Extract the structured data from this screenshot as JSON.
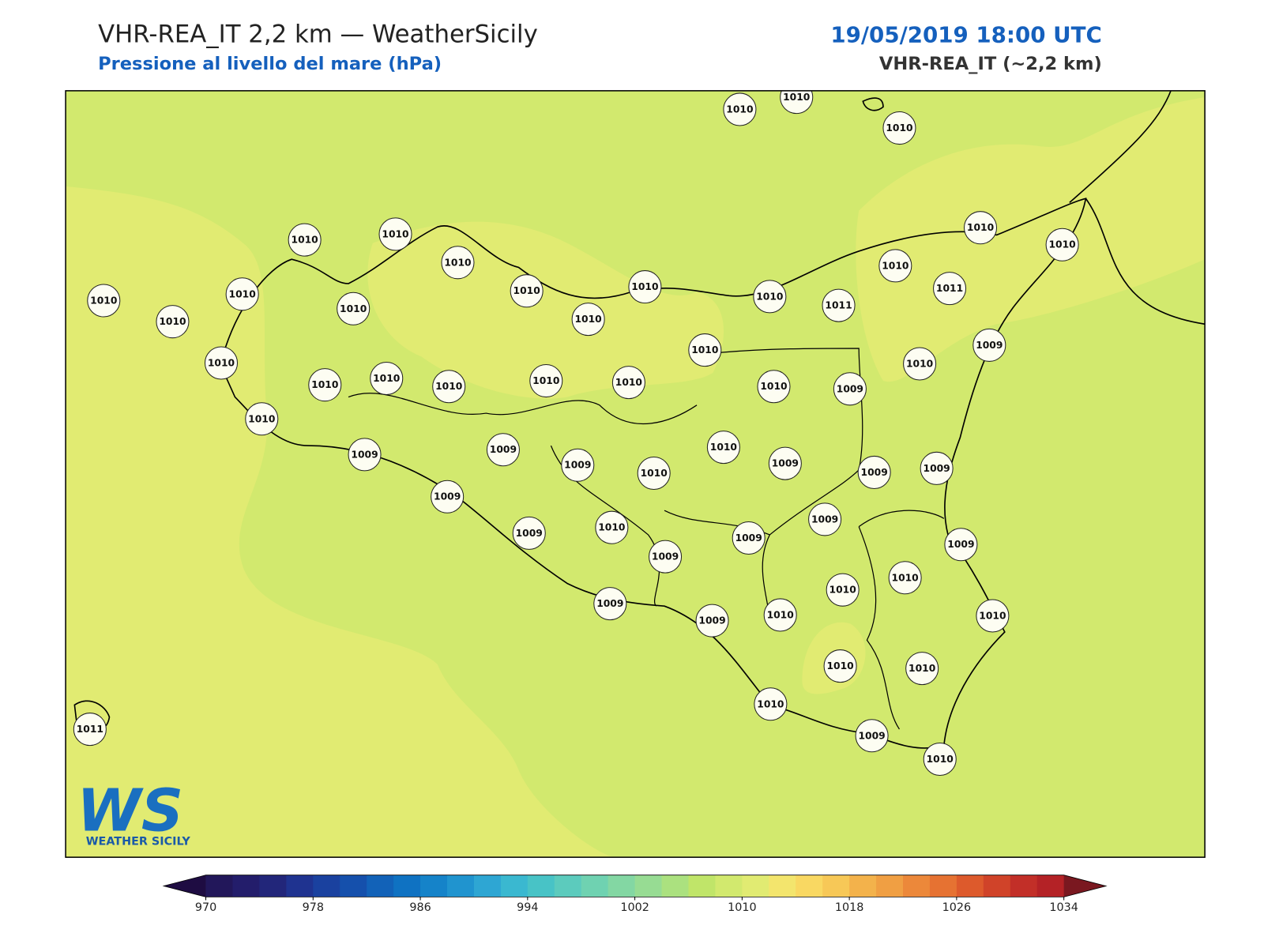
{
  "header": {
    "title": "VHR-REA_IT 2,2 km — WeatherSicily",
    "subtitle": "Pressione al livello del mare (hPa)",
    "datetime": "19/05/2019 18:00 UTC",
    "model": "VHR-REA_IT (~2,2 km)"
  },
  "stations": [
    1010,
    1010,
    1010,
    1010,
    1010,
    1010,
    1010,
    1010,
    1010,
    1010,
    1010,
    1010,
    1010,
    1010,
    1010,
    1010,
    1011,
    1010,
    1011,
    1010,
    1010,
    1009,
    1010,
    1010,
    1010,
    1010,
    1010,
    1010,
    1010,
    1009,
    1010,
    1009,
    1009,
    1009,
    1010,
    1010,
    1009,
    1009,
    1009,
    1009,
    1009,
    1010,
    1009,
    1009,
    1009,
    1009,
    1010,
    1010,
    1009,
    1009,
    1010,
    1010,
    1010,
    1010,
    1010,
    1009,
    1010,
    1011
  ],
  "colorbar": {
    "range": [
      970,
      1034
    ],
    "ticks": [
      970,
      978,
      986,
      994,
      1002,
      1010,
      1018,
      1026,
      1034
    ],
    "colors": [
      "#22175a",
      "#231d6b",
      "#22267a",
      "#1f3390",
      "#1a419f",
      "#1550ac",
      "#1262b8",
      "#0f72c2",
      "#1583c9",
      "#2094cf",
      "#2ea6d3",
      "#3ab8d0",
      "#48c3c6",
      "#5ccbbd",
      "#6fd2b1",
      "#83d7a3",
      "#97dc93",
      "#abe17f",
      "#c0e569",
      "#d2e96e",
      "#e1eb72",
      "#f3e56d",
      "#f9d862",
      "#f7c857",
      "#f3b24b",
      "#f09f43",
      "#ec883a",
      "#e67232",
      "#dd5a2c",
      "#d04329",
      "#c22f28",
      "#b42226"
    ],
    "under_color": "#1e0c42",
    "over_color": "#7a1820"
  },
  "logo": {
    "letters": "WS",
    "caption": "WEATHER SICILY"
  }
}
